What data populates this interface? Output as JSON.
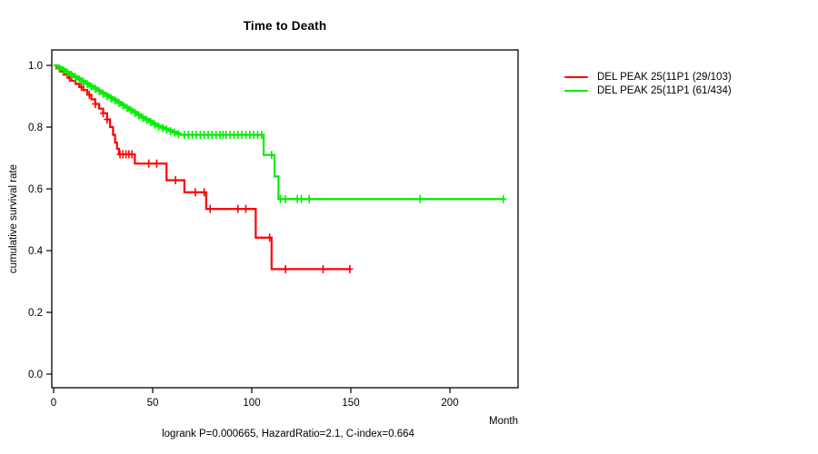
{
  "chart_data": {
    "type": "line",
    "subtype": "kaplan-meier-step",
    "title": "Time to Death",
    "xlabel": "Month",
    "ylabel": "cumulative survival rate",
    "caption": "logrank P=0.000665, HazardRatio=2.1, C-index=0.664",
    "xlim": [
      0,
      235
    ],
    "ylim": [
      0.0,
      1.0
    ],
    "xticks": [
      0,
      50,
      100,
      150,
      200
    ],
    "xtick_labels": [
      "0",
      "50",
      "100",
      "150",
      "200"
    ],
    "yticks": [
      0.0,
      0.2,
      0.4,
      0.6,
      0.8,
      1.0
    ],
    "ytick_labels": [
      "0.0",
      "0.2",
      "0.4",
      "0.6",
      "0.8",
      "1.0"
    ],
    "grid": false,
    "legend_position": "right-outside",
    "axis_color": "#000000",
    "series": [
      {
        "name": "DEL PEAK 25(11P1 (29/103)",
        "color": "#ff0000",
        "events": "29/103",
        "end_month": 150,
        "steps": [
          [
            0,
            1.0
          ],
          [
            1.5,
            0.99
          ],
          [
            3,
            0.98
          ],
          [
            5,
            0.97
          ],
          [
            7,
            0.96
          ],
          [
            9,
            0.95
          ],
          [
            11,
            0.94
          ],
          [
            13,
            0.93
          ],
          [
            15,
            0.92
          ],
          [
            17,
            0.905
          ],
          [
            19,
            0.89
          ],
          [
            21,
            0.875
          ],
          [
            23,
            0.86
          ],
          [
            25,
            0.845
          ],
          [
            27,
            0.825
          ],
          [
            28.5,
            0.8
          ],
          [
            30,
            0.775
          ],
          [
            31,
            0.75
          ],
          [
            32,
            0.73
          ],
          [
            33,
            0.712
          ],
          [
            41,
            0.682
          ],
          [
            57,
            0.628
          ],
          [
            66,
            0.589
          ],
          [
            77,
            0.535
          ],
          [
            102,
            0.442
          ],
          [
            110,
            0.34
          ]
        ],
        "censors": [
          [
            8,
            0.96
          ],
          [
            14,
            0.93
          ],
          [
            18,
            0.905
          ],
          [
            21,
            0.875
          ],
          [
            25,
            0.845
          ],
          [
            27,
            0.825
          ],
          [
            33.5,
            0.712
          ],
          [
            35,
            0.712
          ],
          [
            36.5,
            0.712
          ],
          [
            38,
            0.712
          ],
          [
            39.5,
            0.712
          ],
          [
            48,
            0.682
          ],
          [
            52,
            0.682
          ],
          [
            61.5,
            0.628
          ],
          [
            71.5,
            0.589
          ],
          [
            76,
            0.589
          ],
          [
            79,
            0.535
          ],
          [
            93,
            0.535
          ],
          [
            97,
            0.535
          ],
          [
            109,
            0.442
          ],
          [
            117,
            0.34
          ],
          [
            136,
            0.34
          ],
          [
            149.5,
            0.34
          ]
        ]
      },
      {
        "name": "DEL PEAK 25(11P1 (61/434)",
        "color": "#00ee00",
        "events": "61/434",
        "end_month": 227,
        "steps": [
          [
            0,
            1.0
          ],
          [
            2,
            0.995
          ],
          [
            4,
            0.988
          ],
          [
            6,
            0.98
          ],
          [
            8,
            0.973
          ],
          [
            10,
            0.965
          ],
          [
            12,
            0.958
          ],
          [
            14,
            0.95
          ],
          [
            16,
            0.943
          ],
          [
            18,
            0.935
          ],
          [
            20,
            0.928
          ],
          [
            22,
            0.92
          ],
          [
            24,
            0.912
          ],
          [
            26,
            0.905
          ],
          [
            28,
            0.897
          ],
          [
            30,
            0.89
          ],
          [
            32,
            0.882
          ],
          [
            34,
            0.874
          ],
          [
            36,
            0.866
          ],
          [
            38,
            0.858
          ],
          [
            40,
            0.85
          ],
          [
            42,
            0.842
          ],
          [
            44,
            0.834
          ],
          [
            46,
            0.827
          ],
          [
            48,
            0.82
          ],
          [
            50,
            0.812
          ],
          [
            52,
            0.805
          ],
          [
            54,
            0.8
          ],
          [
            56,
            0.795
          ],
          [
            58,
            0.79
          ],
          [
            60,
            0.785
          ],
          [
            62,
            0.78
          ],
          [
            64,
            0.775
          ],
          [
            106,
            0.71
          ],
          [
            111.5,
            0.64
          ],
          [
            113.5,
            0.567
          ]
        ],
        "censors": [
          [
            3,
            0.99
          ],
          [
            5,
            0.984
          ],
          [
            7,
            0.976
          ],
          [
            9,
            0.969
          ],
          [
            11,
            0.961
          ],
          [
            13,
            0.954
          ],
          [
            15,
            0.946
          ],
          [
            17,
            0.939
          ],
          [
            19,
            0.931
          ],
          [
            21,
            0.924
          ],
          [
            23,
            0.916
          ],
          [
            25,
            0.908
          ],
          [
            27,
            0.9
          ],
          [
            29,
            0.893
          ],
          [
            31,
            0.886
          ],
          [
            33,
            0.878
          ],
          [
            35,
            0.87
          ],
          [
            37,
            0.862
          ],
          [
            39,
            0.854
          ],
          [
            41,
            0.846
          ],
          [
            43,
            0.838
          ],
          [
            45,
            0.83
          ],
          [
            47,
            0.823
          ],
          [
            49,
            0.816
          ],
          [
            51,
            0.808
          ],
          [
            53,
            0.802
          ],
          [
            55,
            0.797
          ],
          [
            57,
            0.792
          ],
          [
            59,
            0.787
          ],
          [
            61,
            0.782
          ],
          [
            63,
            0.777
          ],
          [
            66,
            0.775
          ],
          [
            68,
            0.775
          ],
          [
            70,
            0.775
          ],
          [
            72,
            0.775
          ],
          [
            74,
            0.775
          ],
          [
            76,
            0.775
          ],
          [
            78,
            0.775
          ],
          [
            80,
            0.775
          ],
          [
            82,
            0.775
          ],
          [
            84,
            0.775
          ],
          [
            85.5,
            0.775
          ],
          [
            87,
            0.775
          ],
          [
            89,
            0.775
          ],
          [
            91,
            0.775
          ],
          [
            93,
            0.775
          ],
          [
            95,
            0.775
          ],
          [
            97,
            0.775
          ],
          [
            99,
            0.775
          ],
          [
            101,
            0.775
          ],
          [
            103,
            0.775
          ],
          [
            105,
            0.775
          ],
          [
            110,
            0.71
          ],
          [
            114.5,
            0.567
          ],
          [
            117,
            0.567
          ],
          [
            123,
            0.567
          ],
          [
            125,
            0.567
          ],
          [
            129,
            0.567
          ],
          [
            185,
            0.567
          ],
          [
            227,
            0.567
          ]
        ]
      }
    ]
  }
}
